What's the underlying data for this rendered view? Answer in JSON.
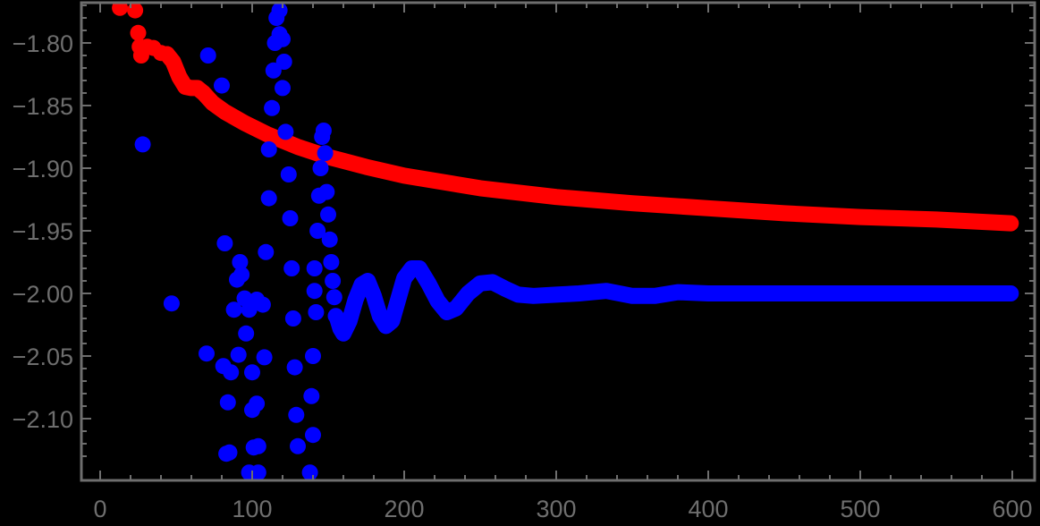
{
  "chart_data": {
    "type": "scatter",
    "title": "",
    "xlabel": "",
    "ylabel": "",
    "xlim": [
      -12,
      615
    ],
    "ylim": [
      -2.144,
      -1.767
    ],
    "grid": false,
    "legend": null,
    "x_ticks": [
      0,
      100,
      200,
      300,
      400,
      500,
      600
    ],
    "x_tick_labels": [
      "0",
      "100",
      "200",
      "300",
      "400",
      "500",
      "600"
    ],
    "y_ticks": [
      -1.8,
      -1.85,
      -1.9,
      -1.95,
      -2.0,
      -2.05,
      -2.1
    ],
    "y_tick_labels": [
      "−1.80",
      "−1.85",
      "−1.90",
      "−1.95",
      "−2.00",
      "−2.05",
      "−2.10"
    ],
    "colors": {
      "background": "#000000",
      "axis": "#6e6e6e",
      "red_series": "#ff0000",
      "blue_series": "#0000ff"
    },
    "series": [
      {
        "name": "red",
        "color": "#ff0000",
        "scatter_points": [
          [
            13,
            -1.772
          ],
          [
            23,
            -1.774
          ],
          [
            25,
            -1.792
          ],
          [
            26,
            -1.803
          ],
          [
            27,
            -1.81
          ],
          [
            31,
            -1.803
          ],
          [
            35,
            -1.804
          ],
          [
            40,
            -1.808
          ],
          [
            44,
            -1.809
          ]
        ],
        "curve": [
          [
            44,
            -1.809
          ],
          [
            48,
            -1.815
          ],
          [
            52,
            -1.827
          ],
          [
            56,
            -1.835
          ],
          [
            60,
            -1.836
          ],
          [
            64,
            -1.836
          ],
          [
            68,
            -1.84
          ],
          [
            74,
            -1.848
          ],
          [
            82,
            -1.855
          ],
          [
            95,
            -1.864
          ],
          [
            110,
            -1.873
          ],
          [
            130,
            -1.883
          ],
          [
            150,
            -1.891
          ],
          [
            175,
            -1.899
          ],
          [
            200,
            -1.906
          ],
          [
            250,
            -1.916
          ],
          [
            300,
            -1.923
          ],
          [
            350,
            -1.928
          ],
          [
            400,
            -1.932
          ],
          [
            450,
            -1.936
          ],
          [
            500,
            -1.939
          ],
          [
            550,
            -1.941
          ],
          [
            599,
            -1.944
          ]
        ]
      },
      {
        "name": "blue",
        "color": "#0000ff",
        "scatter_points": [
          [
            28,
            -1.881
          ],
          [
            47,
            -2.008
          ],
          [
            71,
            -1.81
          ],
          [
            80,
            -1.834
          ],
          [
            82,
            -1.96
          ],
          [
            70,
            -2.048
          ],
          [
            81,
            -2.058
          ],
          [
            84,
            -2.087
          ],
          [
            86,
            -2.063
          ],
          [
            88,
            -2.013
          ],
          [
            90,
            -1.989
          ],
          [
            91,
            -2.049
          ],
          [
            92,
            -1.975
          ],
          [
            93,
            -1.985
          ],
          [
            95,
            -2.004
          ],
          [
            96,
            -2.032
          ],
          [
            98,
            -2.013
          ],
          [
            100,
            -2.093
          ],
          [
            100,
            -2.063
          ],
          [
            101,
            -2.123
          ],
          [
            103,
            -2.088
          ],
          [
            103,
            -2.005
          ],
          [
            104,
            -2.122
          ],
          [
            107,
            -2.009
          ],
          [
            108,
            -2.051
          ],
          [
            109,
            -1.967
          ],
          [
            111,
            -1.924
          ],
          [
            111,
            -1.885
          ],
          [
            113,
            -1.852
          ],
          [
            114,
            -1.822
          ],
          [
            115,
            -1.8
          ],
          [
            116,
            -1.78
          ],
          [
            118,
            -1.774
          ],
          [
            118,
            -1.793
          ],
          [
            120,
            -1.797
          ],
          [
            120,
            -1.836
          ],
          [
            121,
            -1.815
          ],
          [
            122,
            -1.871
          ],
          [
            124,
            -1.905
          ],
          [
            125,
            -1.94
          ],
          [
            126,
            -1.98
          ],
          [
            127,
            -2.02
          ],
          [
            128,
            -2.059
          ],
          [
            129,
            -2.097
          ],
          [
            130,
            -2.122
          ],
          [
            83,
            -2.128
          ],
          [
            85,
            -2.127
          ],
          [
            138,
            -2.143
          ],
          [
            140,
            -2.05
          ],
          [
            141,
            -1.998
          ],
          [
            141,
            -1.98
          ],
          [
            142,
            -2.015
          ],
          [
            143,
            -1.95
          ],
          [
            144,
            -1.922
          ],
          [
            145,
            -1.9
          ],
          [
            146,
            -1.875
          ],
          [
            147,
            -1.87
          ],
          [
            148,
            -1.888
          ],
          [
            149,
            -1.919
          ],
          [
            150,
            -1.937
          ],
          [
            151,
            -1.957
          ],
          [
            152,
            -1.975
          ],
          [
            153,
            -1.99
          ],
          [
            154,
            -2.003
          ],
          [
            155,
            -2.018
          ],
          [
            139,
            -2.082
          ],
          [
            140,
            -2.113
          ],
          [
            98,
            -2.143
          ],
          [
            104,
            -2.143
          ]
        ],
        "curve": [
          [
            156,
            -2.02
          ],
          [
            158,
            -2.028
          ],
          [
            160,
            -2.032
          ],
          [
            164,
            -2.022
          ],
          [
            168,
            -2.005
          ],
          [
            172,
            -1.993
          ],
          [
            176,
            -1.99
          ],
          [
            180,
            -2.002
          ],
          [
            184,
            -2.018
          ],
          [
            188,
            -2.026
          ],
          [
            192,
            -2.022
          ],
          [
            196,
            -2.005
          ],
          [
            200,
            -1.988
          ],
          [
            205,
            -1.98
          ],
          [
            210,
            -1.98
          ],
          [
            216,
            -1.992
          ],
          [
            222,
            -2.006
          ],
          [
            228,
            -2.015
          ],
          [
            234,
            -2.012
          ],
          [
            242,
            -2.0
          ],
          [
            250,
            -1.992
          ],
          [
            258,
            -1.991
          ],
          [
            266,
            -1.996
          ],
          [
            275,
            -2.001
          ],
          [
            285,
            -2.002
          ],
          [
            300,
            -2.001
          ],
          [
            315,
            -2.0
          ],
          [
            333,
            -1.998
          ],
          [
            350,
            -2.002
          ],
          [
            365,
            -2.002
          ],
          [
            380,
            -1.999
          ],
          [
            400,
            -2.0
          ],
          [
            450,
            -2.0
          ],
          [
            500,
            -2.0
          ],
          [
            550,
            -2.0
          ],
          [
            599,
            -2.0
          ]
        ]
      }
    ]
  }
}
